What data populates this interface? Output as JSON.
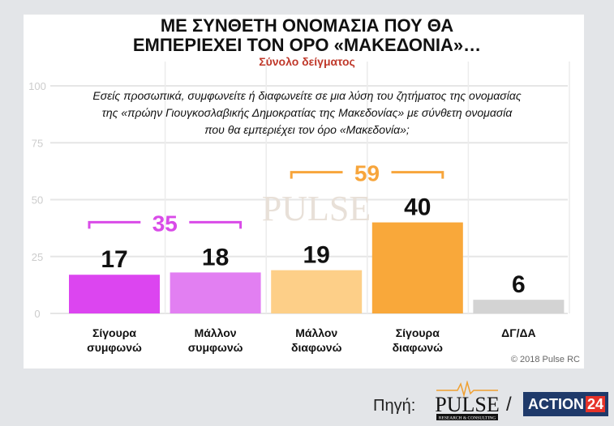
{
  "chart_data": {
    "type": "bar",
    "title": "ΜΕ ΣΥΝΘΕΤΗ ΟΝΟΜΑΣΙΑ ΠΟΥ ΘΑ ΕΜΠΕΡΙΕΧΕΙ ΤΟΝ ΟΡΟ «ΜΑΚΕΔΟΝΙΑ»…",
    "title_lines": [
      "ΜΕ ΣΥΝΘΕΤΗ ΟΝΟΜΑΣΙΑ ΠΟΥ ΘΑ",
      "ΕΜΠΕΡΙΕΧΕΙ ΤΟΝ ΟΡΟ «ΜΑΚΕΔΟΝΙΑ»…"
    ],
    "subtitle": "Σύνολο δείγματος",
    "question_lines": [
      "Εσείς προσωπικά, συμφωνείτε ή διαφωνείτε σε μια λύση του ζητήματος της ονομασίας",
      "της «πρώην Γιουγκοσλαβικής Δημοκρατίας της Μακεδονίας» με σύνθετη ονομασία",
      "που θα εμπεριέχει τον όρο «Μακεδονία»;"
    ],
    "categories": [
      [
        "Σίγουρα",
        "συμφωνώ"
      ],
      [
        "Μάλλον",
        "συμφωνώ"
      ],
      [
        "Μάλλον",
        "διαφωνώ"
      ],
      [
        "Σίγουρα",
        "διαφωνώ"
      ],
      [
        "ΔΓ/ΔΑ"
      ]
    ],
    "values": [
      17,
      18,
      19,
      40,
      6
    ],
    "colors": [
      "#dc45f0",
      "#e27ff2",
      "#fdcf88",
      "#f9a83a",
      "#d3d3d3"
    ],
    "ylim": [
      0,
      100
    ],
    "yticks": [
      0,
      25,
      50,
      75,
      100
    ],
    "grid": true,
    "groups": [
      {
        "label": "35",
        "from": 0,
        "to": 1,
        "color": "#d94be8"
      },
      {
        "label": "59",
        "from": 2,
        "to": 3,
        "color": "#f7a53b"
      }
    ]
  },
  "watermark": "PULSE",
  "copyright": "© 2018 Pulse RC",
  "source_label": "Πηγή:",
  "separator": "/",
  "pulse_logo_text": "PULSE",
  "pulse_logo_sub": "RESEARCH & CONSULTING",
  "action_logo": {
    "text": "ACTION",
    "num": "24"
  }
}
